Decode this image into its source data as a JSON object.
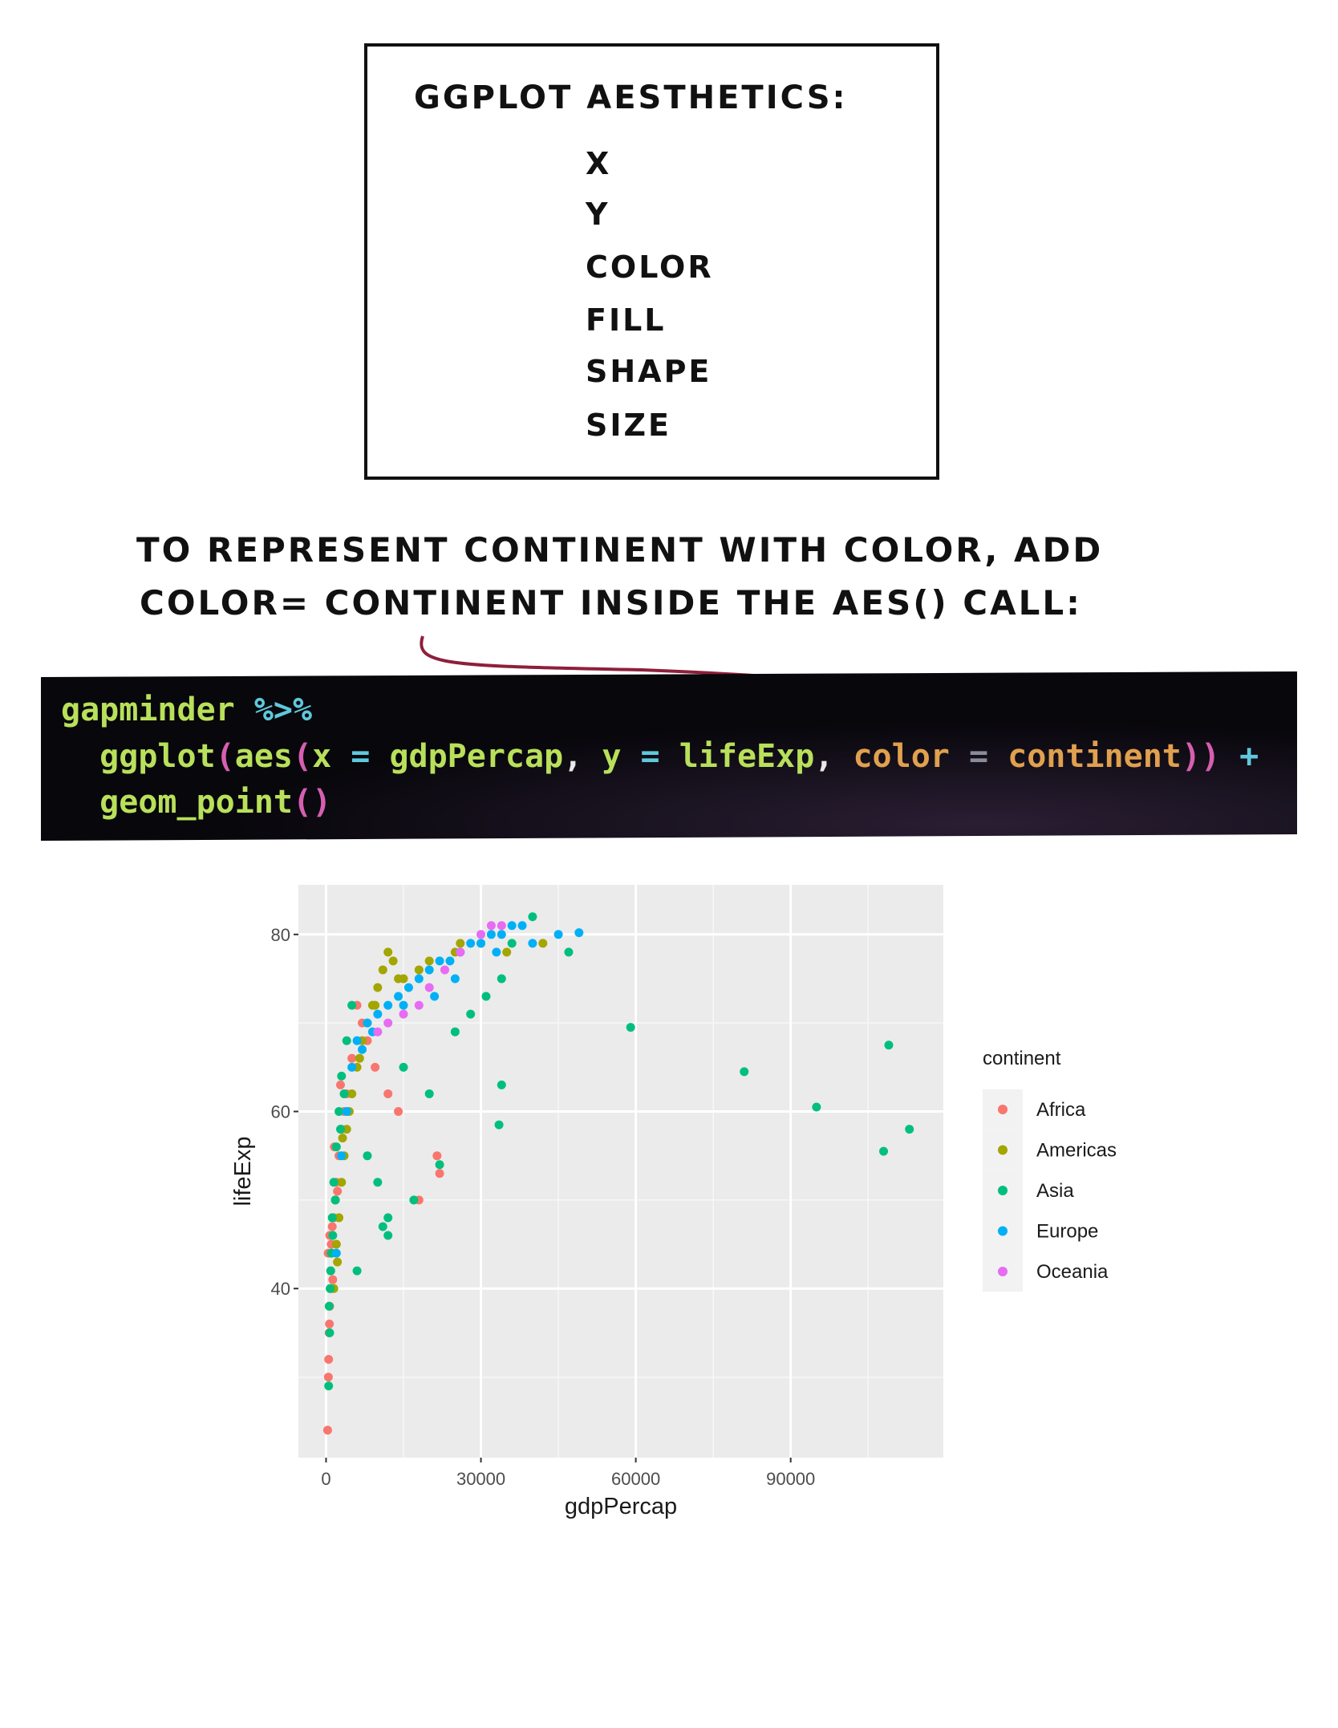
{
  "box": {
    "title": "GGPLOT  AESTHETICS:",
    "items": [
      "X",
      "Y",
      "COLOR",
      "FILL",
      "SHAPE",
      "SIZE"
    ]
  },
  "note": {
    "lines": [
      "TO REPRESENT CONTINENT WITH COLOR, ADD",
      "COLOR= CONTINENT INSIDE THE AES()  CALL:"
    ]
  },
  "code": {
    "lines": [
      [
        {
          "text": "gapminder",
          "color": "#b8e05a"
        },
        {
          "text": " %>%",
          "color": "#5fc8dc"
        }
      ],
      [
        {
          "text": "  ggplot",
          "color": "#b8e05a"
        },
        {
          "text": "(",
          "color": "#d65fb0"
        },
        {
          "text": "aes",
          "color": "#b8e05a"
        },
        {
          "text": "(",
          "color": "#d65fb0"
        },
        {
          "text": "x",
          "color": "#b8e05a"
        },
        {
          "text": " = ",
          "color": "#5fc8dc"
        },
        {
          "text": "gdpPercap",
          "color": "#b8e05a"
        },
        {
          "text": ", ",
          "color": "#e8e8e8"
        },
        {
          "text": "y",
          "color": "#b8e05a"
        },
        {
          "text": " = ",
          "color": "#5fc8dc"
        },
        {
          "text": "lifeExp",
          "color": "#b8e05a"
        },
        {
          "text": ", ",
          "color": "#e8e8e8"
        },
        {
          "text": "color",
          "color": "#e0a04e"
        },
        {
          "text": " = ",
          "color": "#8a8a9a"
        },
        {
          "text": "continent",
          "color": "#e0a04e"
        },
        {
          "text": "))",
          "color": "#d65fb0"
        },
        {
          "text": " +",
          "color": "#5fc8dc"
        }
      ],
      [
        {
          "text": "  geom_point",
          "color": "#b8e05a"
        },
        {
          "text": "()",
          "color": "#d65fb0"
        }
      ]
    ]
  },
  "chart_data": {
    "type": "scatter",
    "x_label": "gdpPercap",
    "y_label": "lifeExp",
    "legend_title": "continent",
    "legend_position": "right",
    "grid": true,
    "xlim": [
      -5357,
      119571
    ],
    "ylim": [
      20.9,
      85.6
    ],
    "xticks": [
      0,
      30000,
      60000,
      90000
    ],
    "yticks": [
      40,
      60,
      80
    ],
    "series": [
      {
        "name": "Africa",
        "color": "#F8766D",
        "x": [
          300,
          450,
          600,
          700,
          800,
          900,
          1000,
          1200,
          1500,
          1800,
          2000,
          2500,
          3000,
          3500,
          4000,
          500,
          650,
          1100,
          1300,
          2200,
          6000,
          7000,
          8000,
          9500,
          12000,
          14000,
          18000,
          21500,
          22000,
          1000,
          700,
          400,
          1600,
          2800,
          5000
        ],
        "values": [
          24,
          30,
          35,
          38,
          40,
          42,
          45,
          47,
          48,
          50,
          52,
          55,
          58,
          60,
          62,
          32,
          36,
          44,
          41,
          51,
          72,
          70,
          68,
          65,
          62,
          60,
          50,
          55,
          53,
          40,
          46,
          44,
          56,
          63,
          66
        ]
      },
      {
        "name": "Americas",
        "color": "#A3A500",
        "x": [
          1500,
          2000,
          2500,
          3000,
          3500,
          4000,
          5000,
          6000,
          7000,
          8000,
          9000,
          10000,
          11000,
          12000,
          13000,
          15000,
          18000,
          20000,
          25000,
          30000,
          35000,
          42000,
          2200,
          4500,
          6500,
          1800,
          3200,
          9500,
          14000,
          26000
        ],
        "values": [
          40,
          45,
          48,
          52,
          55,
          58,
          62,
          65,
          68,
          70,
          72,
          74,
          76,
          78,
          77,
          75,
          76,
          77,
          78,
          79,
          78,
          79,
          43,
          60,
          66,
          50,
          57,
          72,
          75,
          79
        ]
      },
      {
        "name": "Asia",
        "color": "#00BF7D",
        "x": [
          500,
          700,
          800,
          1000,
          1200,
          1500,
          2000,
          2500,
          3000,
          4000,
          5000,
          600,
          900,
          1300,
          1800,
          2800,
          3500,
          8000,
          10000,
          12000,
          15000,
          20000,
          25000,
          28000,
          31000,
          34000,
          36000,
          40000,
          47000,
          59000,
          81000,
          95000,
          108000,
          109000,
          113000,
          34000,
          33500,
          17000,
          22000,
          12000,
          11000,
          6000
        ],
        "values": [
          29,
          35,
          40,
          44,
          48,
          52,
          56,
          60,
          64,
          68,
          72,
          38,
          42,
          46,
          50,
          58,
          62,
          55,
          52,
          48,
          65,
          62,
          69,
          71,
          73,
          75,
          79,
          82,
          78,
          69.5,
          64.5,
          60.5,
          55.5,
          67.5,
          58,
          63,
          58.5,
          50,
          54,
          46,
          47,
          42
        ]
      },
      {
        "name": "Europe",
        "color": "#00B0F6",
        "x": [
          2000,
          3000,
          4000,
          5000,
          6000,
          8000,
          10000,
          12000,
          14000,
          16000,
          18000,
          20000,
          22000,
          24000,
          26000,
          28000,
          30000,
          32000,
          34000,
          36000,
          38000,
          40000,
          45000,
          49000,
          15000,
          25000,
          33000,
          9000,
          7000,
          21000
        ],
        "values": [
          44,
          55,
          60,
          65,
          68,
          70,
          71,
          72,
          73,
          74,
          75,
          76,
          77,
          77,
          78,
          79,
          79,
          80,
          80,
          81,
          81,
          79,
          80,
          80.2,
          72,
          75,
          78,
          69,
          67,
          73
        ]
      },
      {
        "name": "Oceania",
        "color": "#E76BF3",
        "x": [
          10000,
          12000,
          15000,
          18000,
          20000,
          23000,
          26000,
          30000,
          32000,
          34000
        ],
        "values": [
          69,
          70,
          71,
          72,
          74,
          76,
          78,
          80,
          81,
          81
        ]
      }
    ]
  }
}
